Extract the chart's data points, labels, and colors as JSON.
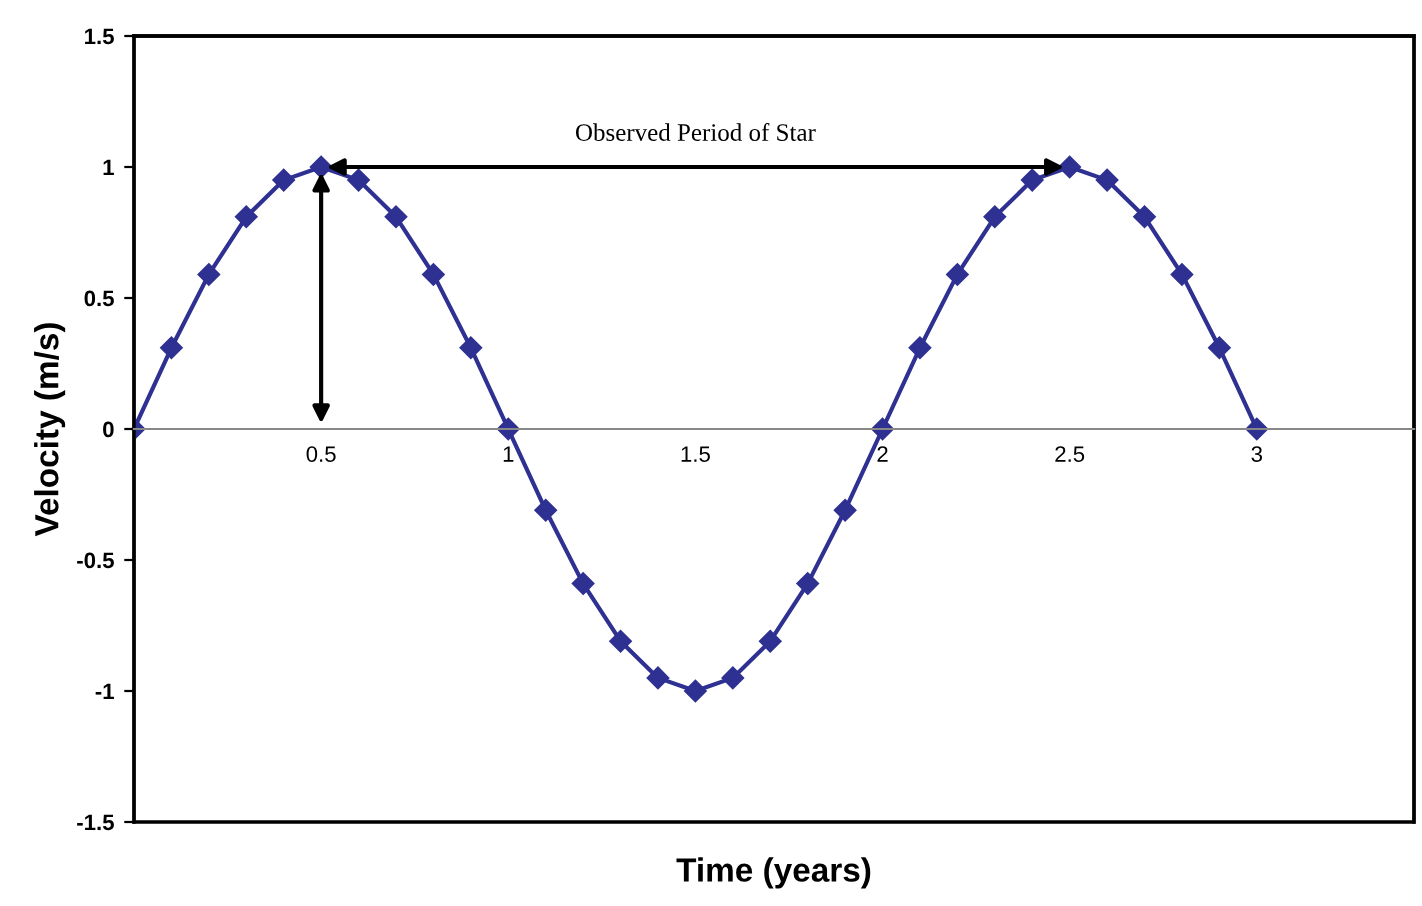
{
  "chart_data": {
    "type": "line",
    "xlabel": "Time (years)",
    "ylabel": "Velocity (m/s)",
    "x": [
      0,
      0.1,
      0.2,
      0.3,
      0.4,
      0.5,
      0.6,
      0.7,
      0.8,
      0.9,
      1.0,
      1.1,
      1.2,
      1.3,
      1.4,
      1.5,
      1.6,
      1.7,
      1.8,
      1.9,
      2.0,
      2.1,
      2.2,
      2.3,
      2.4,
      2.5,
      2.6,
      2.7,
      2.8,
      2.9,
      3.0
    ],
    "series": [
      {
        "color": "#2e3192",
        "values": [
          0,
          0.31,
          0.59,
          0.81,
          0.95,
          1,
          0.95,
          0.81,
          0.59,
          0.31,
          0,
          -0.31,
          -0.59,
          -0.81,
          -0.95,
          -1,
          -0.95,
          -0.81,
          -0.59,
          -0.31,
          0,
          0.31,
          0.59,
          0.81,
          0.95,
          1,
          0.95,
          0.81,
          0.59,
          0.31,
          0
        ]
      }
    ],
    "marker": "diamond",
    "line_style": "solid",
    "grid": false,
    "xlim": [
      0,
      3.42
    ],
    "ylim": [
      -1.5,
      1.5
    ],
    "xticks": [
      0.5,
      1,
      1.5,
      2,
      2.5,
      3
    ],
    "yticks": [
      -1.5,
      -1,
      -0.5,
      0,
      0.5,
      1,
      1.5
    ],
    "annotations": [
      "Observed Period of Star"
    ]
  }
}
